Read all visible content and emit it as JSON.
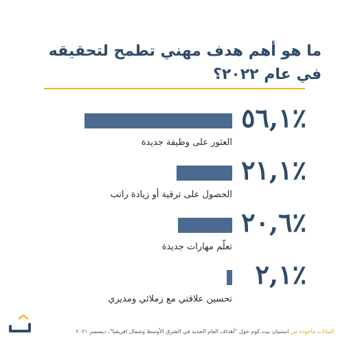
{
  "title": "ما هو أهم هدف مهني تطمح لتحقيقه في عام ٢٠٢٢؟",
  "colors": {
    "title": "#2f4b69",
    "bar": "#4a6b8f",
    "accent": "#f2b420",
    "source_lead": "#e8a317"
  },
  "brand_icon": "bayt-logo-icon",
  "footer": {
    "source_lead": "البيانات مأخوذة من",
    "source_text": "استبيان بيت.كوم حول \"أهداف العام الجديد في الشرق الأوسط وشمال افريقيا\"، ديسمبر ٢٠٢١"
  },
  "chart_data": {
    "type": "bar",
    "orientation": "horizontal",
    "categories": [
      "العثور على وظيفة جديدة",
      "الحصول على ترقية أو زيادة راتب",
      "تعلّم مهارات جديدة",
      "تحسين علاقتي مع زملائي ومديري"
    ],
    "values": [
      56.1,
      21.1,
      20.6,
      2.1
    ],
    "value_labels": [
      "٥٦,١٪",
      "٢١,١٪",
      "٢٠,٦٪",
      "٢,١٪"
    ],
    "title": "ما هو أهم هدف مهني تطمح لتحقيقه في عام ٢٠٢٢؟",
    "xlabel": "",
    "ylabel": "",
    "xlim": [
      0,
      56.1
    ],
    "grid": false,
    "legend": "none"
  }
}
